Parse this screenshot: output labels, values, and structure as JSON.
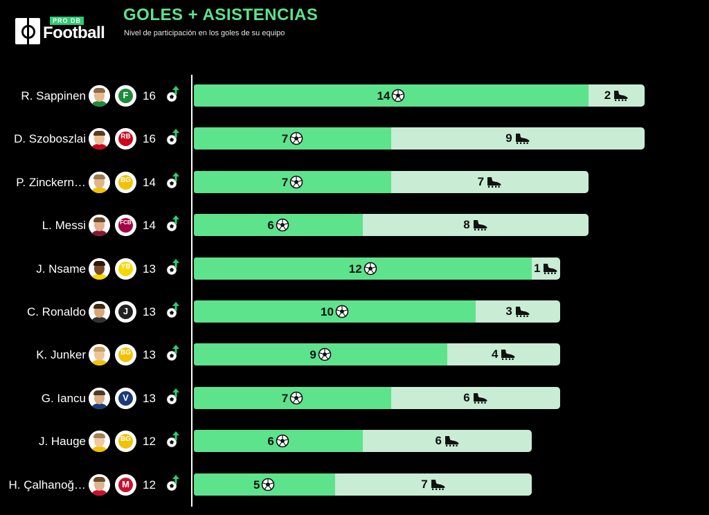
{
  "header": {
    "logo_pro": "PRO DB",
    "logo_word": "Football",
    "title": "GOLES + ASISTENCIAS",
    "subtitle": "Nivel de participación en los goles de su equipo"
  },
  "colors": {
    "goals": "#5de38c",
    "assists": "#c8ecd4",
    "title": "#5de38c",
    "background": "#000000",
    "trend_arrow": "#2ecc71"
  },
  "icons": {
    "goal": "soccer-ball-icon",
    "assist": "football-boot-icon",
    "total_trend": "ball-with-up-arrow-icon"
  },
  "players": [
    {
      "name": "R. Sappinen",
      "total": "16",
      "crest": "Flora",
      "crest_color": "#1e8a3e",
      "crest_letter": "F",
      "shirt": "#1e8a3e",
      "hair": "#8a6a4a",
      "skin": "#e7b98d"
    },
    {
      "name": "D. Szoboszlai",
      "total": "16",
      "crest": "Salzburg",
      "crest_color": "#d0021b",
      "crest_letter": "RB",
      "shirt": "#d0021b",
      "hair": "#5a3a22",
      "skin": "#e9c19a"
    },
    {
      "name": "P. Zinckern…",
      "total": "14",
      "crest": "Bodø/Glimt",
      "crest_color": "#f2c200",
      "crest_letter": "BG",
      "shirt": "#f2c200",
      "hair": "#9a7a50",
      "skin": "#e2b48a"
    },
    {
      "name": "L. Messi",
      "total": "14",
      "crest": "Barcelona",
      "crest_color": "#a50044",
      "crest_letter": "FCB",
      "shirt": "#8a1538",
      "hair": "#6b4a2e",
      "skin": "#e0b08a"
    },
    {
      "name": "J. Nsame",
      "total": "13",
      "crest": "Young Boys",
      "crest_color": "#f6d800",
      "crest_letter": "YB",
      "shirt": "#f6d800",
      "hair": "#2a1a10",
      "skin": "#7a4a2a"
    },
    {
      "name": "C. Ronaldo",
      "total": "13",
      "crest": "Juventus",
      "crest_color": "#222222",
      "crest_letter": "J",
      "shirt": "#333333",
      "hair": "#3a2a1a",
      "skin": "#d9a57a"
    },
    {
      "name": "K. Junker",
      "total": "13",
      "crest": "Bodø/Glimt",
      "crest_color": "#f2c200",
      "crest_letter": "BG",
      "shirt": "#f2c200",
      "hair": "#c9a060",
      "skin": "#ecc49e"
    },
    {
      "name": "G. Iancu",
      "total": "13",
      "crest": "Viitorul",
      "crest_color": "#1a3a7a",
      "crest_letter": "V",
      "shirt": "#1a3a7a",
      "hair": "#4a3a2a",
      "skin": "#dcae86"
    },
    {
      "name": "J. Hauge",
      "total": "12",
      "crest": "Bodø/Glimt",
      "crest_color": "#f2c200",
      "crest_letter": "BG",
      "shirt": "#f2c200",
      "hair": "#a08058",
      "skin": "#eec9a2"
    },
    {
      "name": "H. Çalhanoğ…",
      "total": "12",
      "crest": "Milan",
      "crest_color": "#c8102e",
      "crest_letter": "M",
      "shirt": "#c8102e",
      "hair": "#6a4a2a",
      "skin": "#e0b48c"
    }
  ],
  "chart_data": {
    "type": "bar",
    "orientation": "horizontal",
    "stacked": true,
    "title": "GOLES + ASISTENCIAS",
    "subtitle": "Nivel de participación en los goles de su equipo",
    "categories": [
      "R. Sappinen",
      "D. Szoboszlai",
      "P. Zinckern…",
      "L. Messi",
      "J. Nsame",
      "C. Ronaldo",
      "K. Junker",
      "G. Iancu",
      "J. Hauge",
      "H. Çalhanoğ…"
    ],
    "series": [
      {
        "key": "goals",
        "icon": "soccer-ball-icon",
        "values": [
          14,
          7,
          7,
          6,
          12,
          10,
          9,
          7,
          6,
          5
        ]
      },
      {
        "key": "assists",
        "icon": "football-boot-icon",
        "values": [
          2,
          9,
          7,
          8,
          1,
          3,
          4,
          6,
          6,
          7
        ]
      }
    ],
    "totals": [
      16,
      16,
      14,
      14,
      13,
      13,
      13,
      13,
      12,
      12
    ],
    "xlim": [
      0,
      16
    ],
    "grid": false,
    "legend": "none"
  }
}
